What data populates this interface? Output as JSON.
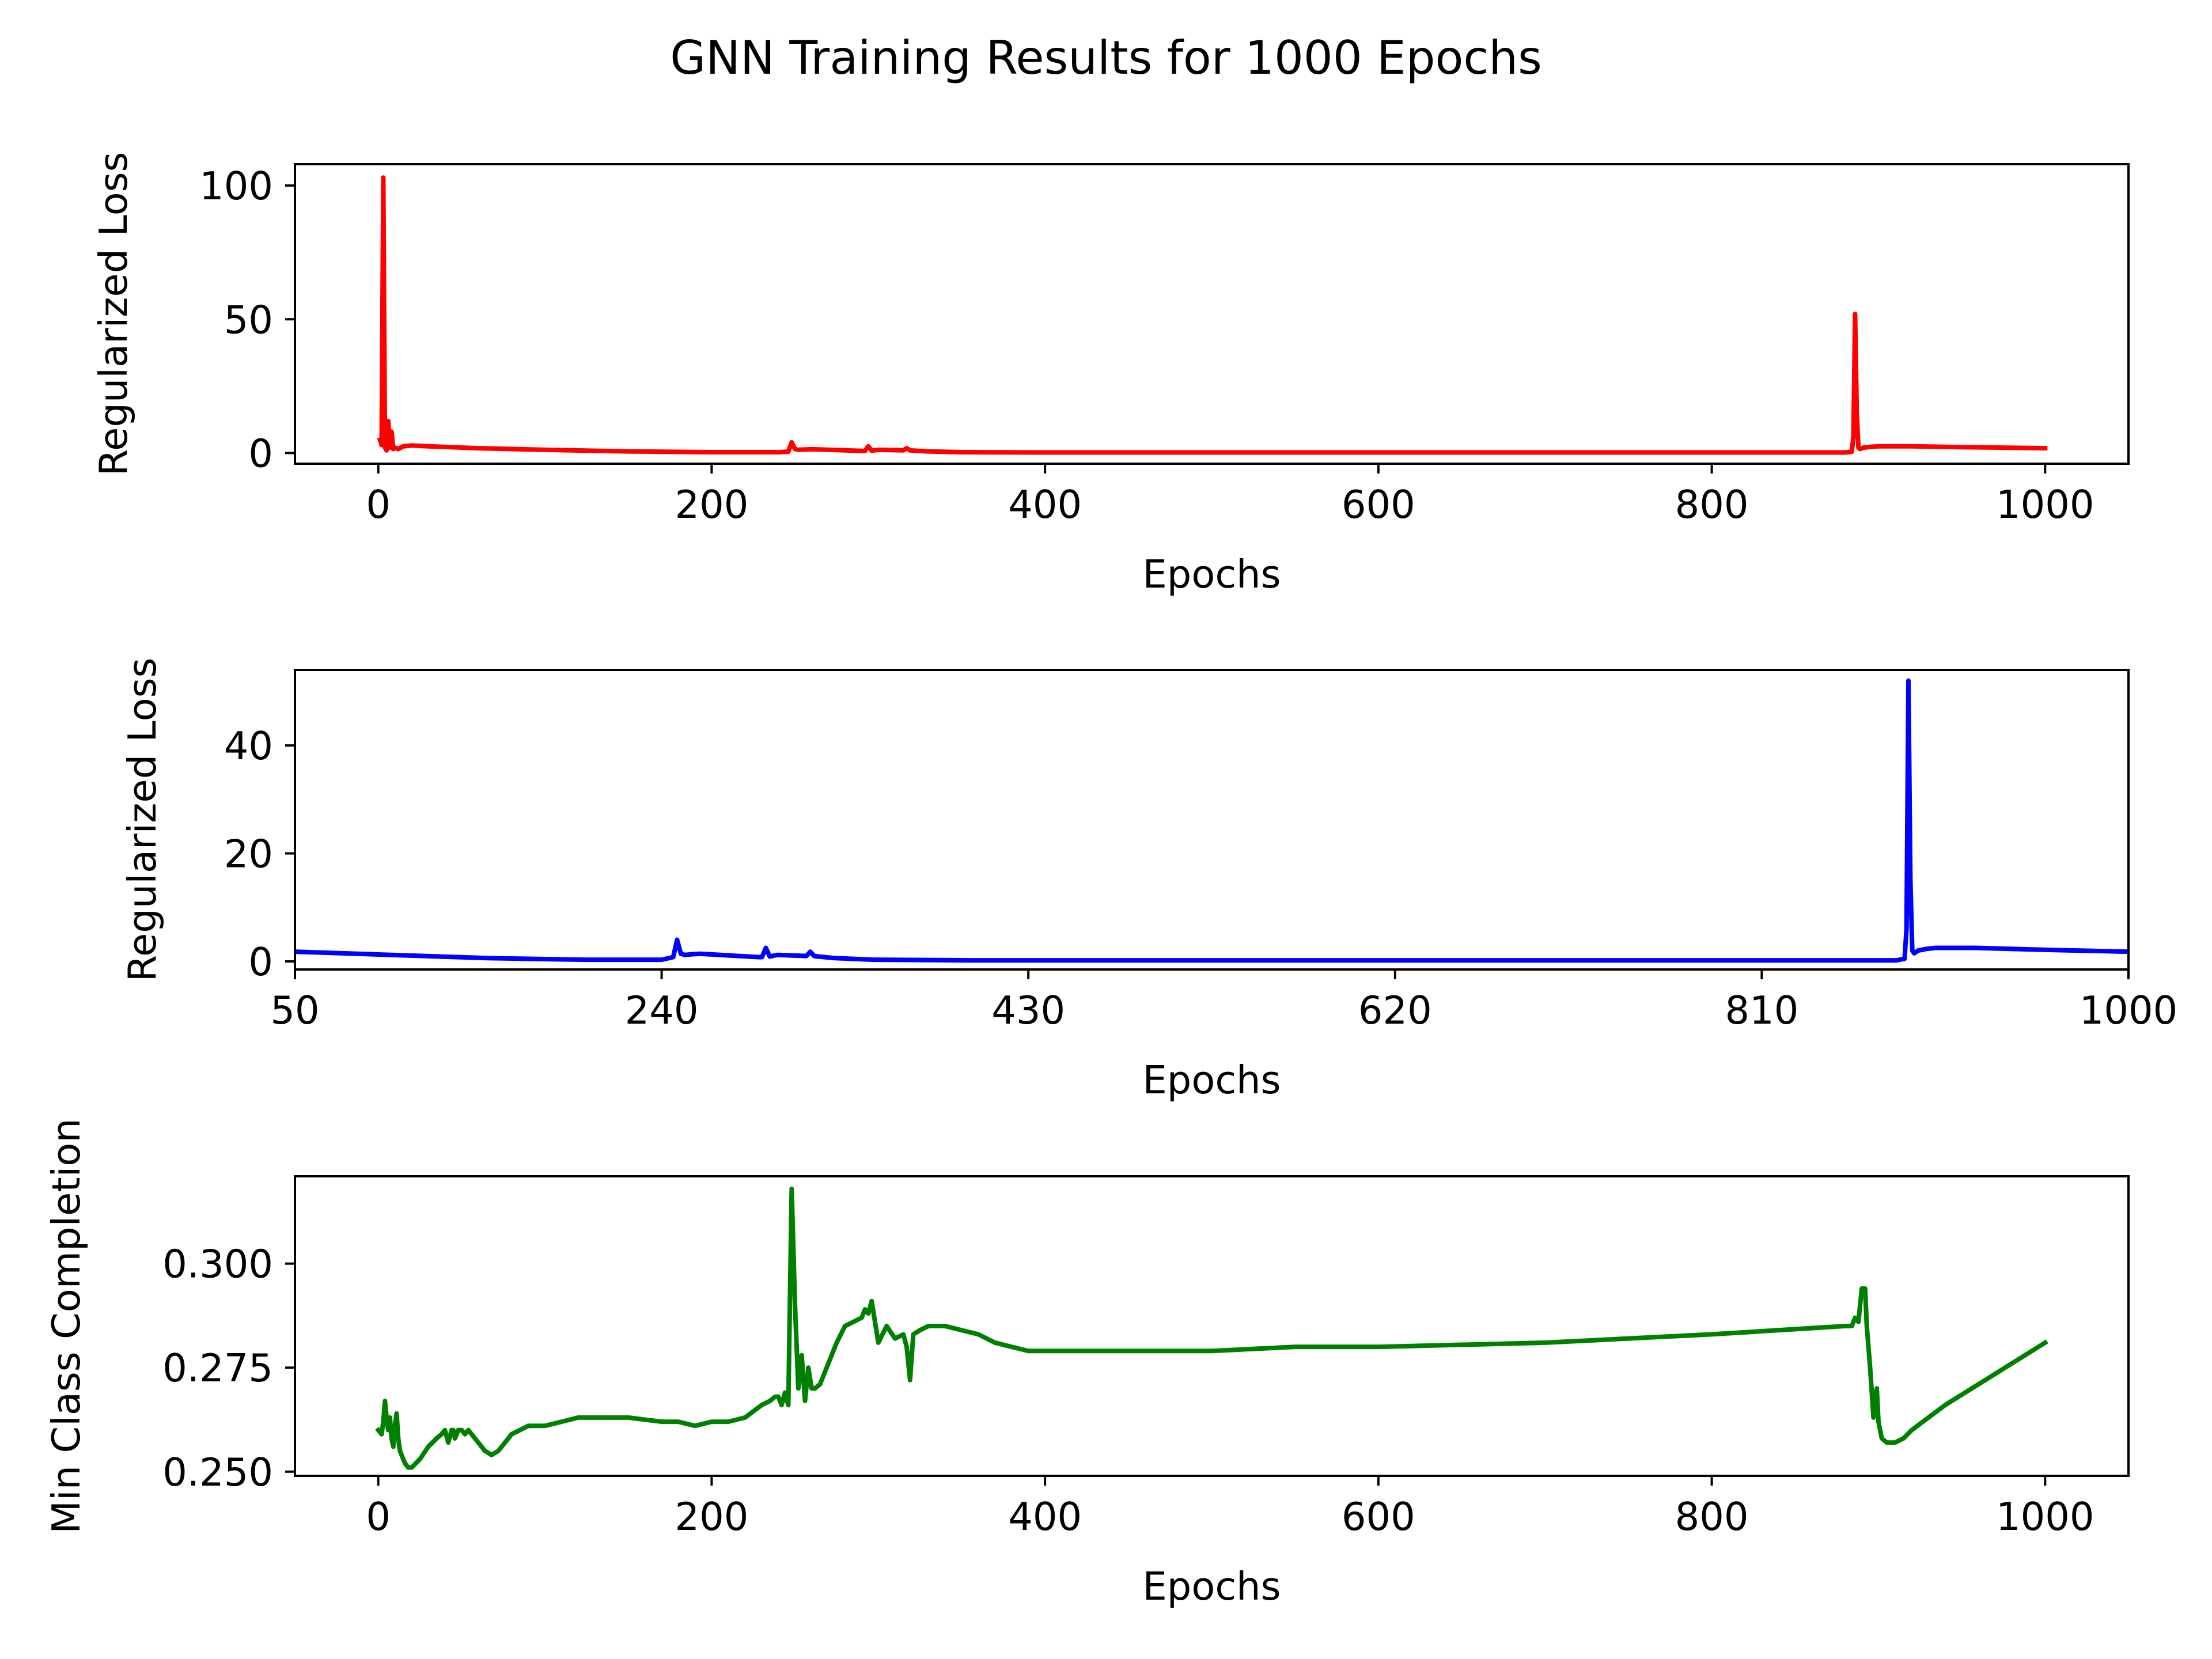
{
  "figure": {
    "title": "GNN Training Results for 1000 Epochs"
  },
  "chart_data": [
    {
      "type": "line",
      "title": "",
      "xlabel": "Epochs",
      "ylabel": "Regularized Loss",
      "xlim": [
        -50,
        1050
      ],
      "ylim": [
        -4,
        108
      ],
      "xticks": [
        0,
        200,
        400,
        600,
        800,
        1000
      ],
      "yticks": [
        0,
        50,
        100
      ],
      "ytick_labels": [
        "0",
        "50",
        "100"
      ],
      "grid": false,
      "legend": "none",
      "series": [
        {
          "color": "#ff0000",
          "x": [
            1,
            2,
            3,
            4,
            5,
            6,
            7,
            8,
            9,
            10,
            12,
            15,
            20,
            30,
            60,
            100,
            150,
            200,
            240,
            246,
            248,
            250,
            252,
            255,
            260,
            280,
            290,
            292,
            294,
            296,
            300,
            315,
            317,
            319,
            321,
            330,
            350,
            400,
            500,
            600,
            700,
            800,
            880,
            884,
            885,
            886,
            887,
            888,
            889,
            891,
            895,
            900,
            920,
            950,
            1000
          ],
          "y": [
            5,
            3,
            103,
            2,
            1,
            12,
            2,
            8,
            1.5,
            2,
            1.5,
            2.5,
            2.8,
            2.5,
            1.8,
            1.2,
            0.6,
            0.3,
            0.3,
            0.5,
            4,
            1.5,
            1.2,
            1.3,
            1.4,
            1.0,
            0.8,
            0.8,
            2.5,
            0.9,
            1.2,
            1.0,
            1.8,
            1.0,
            0.9,
            0.6,
            0.3,
            0.2,
            0.2,
            0.2,
            0.2,
            0.2,
            0.2,
            0.5,
            6,
            52,
            15,
            2,
            1.5,
            2,
            2.3,
            2.5,
            2.5,
            2.2,
            1.8
          ]
        }
      ]
    },
    {
      "type": "line",
      "title": "",
      "xlabel": "Epochs",
      "ylabel": "Regularized Loss",
      "xlim": [
        50,
        1000
      ],
      "ylim": [
        -1.5,
        54
      ],
      "xticks": [
        50,
        240,
        430,
        620,
        810,
        1000
      ],
      "yticks": [
        0,
        20,
        40
      ],
      "ytick_labels": [
        "0",
        "20",
        "40"
      ],
      "grid": false,
      "legend": "none",
      "series": [
        {
          "color": "#0000ff",
          "x": [
            50,
            100,
            150,
            200,
            240,
            246,
            248,
            250,
            252,
            255,
            260,
            280,
            290,
            292,
            294,
            296,
            300,
            315,
            317,
            319,
            321,
            330,
            350,
            400,
            500,
            600,
            700,
            800,
            880,
            884,
            885,
            886,
            887,
            888,
            889,
            891,
            895,
            900,
            920,
            950,
            1000
          ],
          "y": [
            1.8,
            1.2,
            0.6,
            0.3,
            0.3,
            0.8,
            4,
            1.4,
            1.2,
            1.3,
            1.4,
            1.0,
            0.8,
            0.8,
            2.5,
            0.9,
            1.2,
            1.0,
            1.8,
            1.0,
            0.9,
            0.6,
            0.3,
            0.2,
            0.2,
            0.2,
            0.2,
            0.2,
            0.2,
            0.5,
            6,
            52,
            15,
            2,
            1.5,
            2,
            2.3,
            2.5,
            2.5,
            2.2,
            1.8
          ]
        }
      ]
    },
    {
      "type": "line",
      "title": "",
      "xlabel": "Epochs",
      "ylabel": "Min Class Completion",
      "xlim": [
        -50,
        1050
      ],
      "ylim": [
        0.249,
        0.321
      ],
      "xticks": [
        0,
        200,
        400,
        600,
        800,
        1000
      ],
      "yticks": [
        0.25,
        0.275,
        0.3
      ],
      "ytick_labels": [
        "0.250",
        "0.275",
        "0.300"
      ],
      "grid": false,
      "legend": "none",
      "series": [
        {
          "color": "#008000",
          "x": [
            0,
            2,
            3,
            4,
            5,
            6,
            7,
            8,
            9,
            10,
            11,
            12,
            13,
            14,
            15,
            16,
            18,
            20,
            25,
            30,
            35,
            38,
            40,
            42,
            44,
            45,
            46,
            48,
            50,
            52,
            54,
            56,
            60,
            64,
            68,
            72,
            76,
            80,
            85,
            90,
            100,
            110,
            120,
            130,
            150,
            170,
            180,
            190,
            200,
            210,
            220,
            230,
            235,
            238,
            240,
            242,
            244,
            246,
            248,
            250,
            252,
            254,
            256,
            258,
            260,
            262,
            265,
            270,
            275,
            280,
            285,
            290,
            292,
            294,
            296,
            300,
            305,
            310,
            315,
            317,
            319,
            321,
            325,
            330,
            335,
            340,
            350,
            360,
            370,
            380,
            390,
            400,
            420,
            450,
            500,
            550,
            600,
            700,
            800,
            880,
            884,
            886,
            888,
            890,
            892,
            893,
            895,
            896,
            897,
            898,
            899,
            900,
            902,
            905,
            910,
            915,
            920,
            940,
            960,
            980,
            1000
          ],
          "y": [
            0.26,
            0.259,
            0.262,
            0.267,
            0.263,
            0.26,
            0.263,
            0.258,
            0.256,
            0.261,
            0.264,
            0.258,
            0.255,
            0.254,
            0.253,
            0.252,
            0.251,
            0.251,
            0.253,
            0.256,
            0.258,
            0.259,
            0.26,
            0.257,
            0.26,
            0.26,
            0.258,
            0.26,
            0.26,
            0.259,
            0.26,
            0.259,
            0.257,
            0.255,
            0.254,
            0.255,
            0.257,
            0.259,
            0.26,
            0.261,
            0.261,
            0.262,
            0.263,
            0.263,
            0.263,
            0.262,
            0.262,
            0.261,
            0.262,
            0.262,
            0.263,
            0.266,
            0.267,
            0.268,
            0.268,
            0.266,
            0.269,
            0.266,
            0.318,
            0.29,
            0.27,
            0.278,
            0.267,
            0.275,
            0.27,
            0.27,
            0.271,
            0.276,
            0.281,
            0.285,
            0.286,
            0.287,
            0.289,
            0.288,
            0.291,
            0.281,
            0.285,
            0.282,
            0.283,
            0.28,
            0.272,
            0.283,
            0.284,
            0.285,
            0.285,
            0.285,
            0.284,
            0.283,
            0.281,
            0.28,
            0.279,
            0.279,
            0.279,
            0.279,
            0.279,
            0.28,
            0.28,
            0.281,
            0.283,
            0.285,
            0.285,
            0.287,
            0.286,
            0.294,
            0.294,
            0.285,
            0.275,
            0.269,
            0.263,
            0.268,
            0.27,
            0.262,
            0.258,
            0.257,
            0.257,
            0.258,
            0.26,
            0.266,
            0.271,
            0.276,
            0.281
          ]
        }
      ]
    }
  ]
}
